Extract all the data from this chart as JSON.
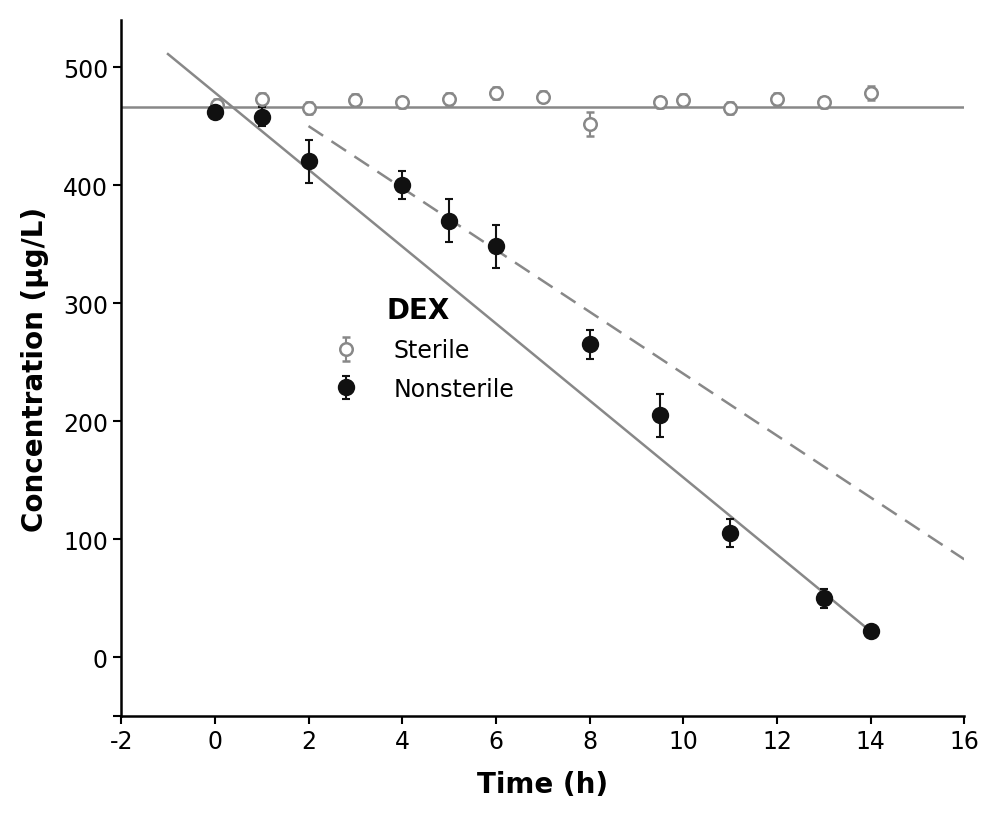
{
  "sterile_x": [
    0,
    0.05,
    1,
    2,
    3,
    4,
    5,
    6,
    7,
    8,
    9.5,
    10,
    11,
    12,
    13,
    14
  ],
  "sterile_y": [
    463,
    468,
    473,
    465,
    472,
    470,
    473,
    478,
    475,
    452,
    470,
    472,
    465,
    473,
    470,
    478
  ],
  "sterile_err": [
    5,
    5,
    5,
    5,
    5,
    5,
    5,
    5,
    5,
    10,
    5,
    5,
    5,
    5,
    5,
    6
  ],
  "nonsterile_x": [
    0,
    1,
    2,
    4,
    5,
    6,
    8,
    9.5,
    11,
    13,
    14
  ],
  "nonsterile_y": [
    462,
    458,
    420,
    400,
    370,
    348,
    265,
    205,
    105,
    50,
    22
  ],
  "nonsterile_err": [
    5,
    8,
    18,
    12,
    18,
    18,
    12,
    18,
    12,
    8,
    5
  ],
  "sterile_line_x": [
    -2,
    16
  ],
  "sterile_line_y": [
    466,
    466
  ],
  "solid_line_x": [
    -1.0,
    14.0
  ],
  "solid_line_y": [
    511.0,
    22.0
  ],
  "dashed_line_x": [
    2.0,
    16.0
  ],
  "dashed_line_y": [
    450.0,
    83.0
  ],
  "xlim": [
    -2,
    16
  ],
  "ylim": [
    -50,
    540
  ],
  "xlabel": "Time (h)",
  "ylabel": "Concentration (μg/L)",
  "legend_title": "DEX",
  "legend_sterile": "Sterile",
  "legend_nonsterile": "Nonsterile",
  "sterile_color": "#888888",
  "nonsterile_color": "#111111",
  "line_color": "#888888",
  "xticks": [
    -2,
    0,
    2,
    4,
    6,
    8,
    10,
    12,
    14,
    16
  ],
  "yticks": [
    -50,
    0,
    100,
    200,
    300,
    400,
    500
  ],
  "axis_label_fontsize": 20,
  "tick_fontsize": 17,
  "legend_fontsize": 17,
  "legend_title_fontsize": 20
}
